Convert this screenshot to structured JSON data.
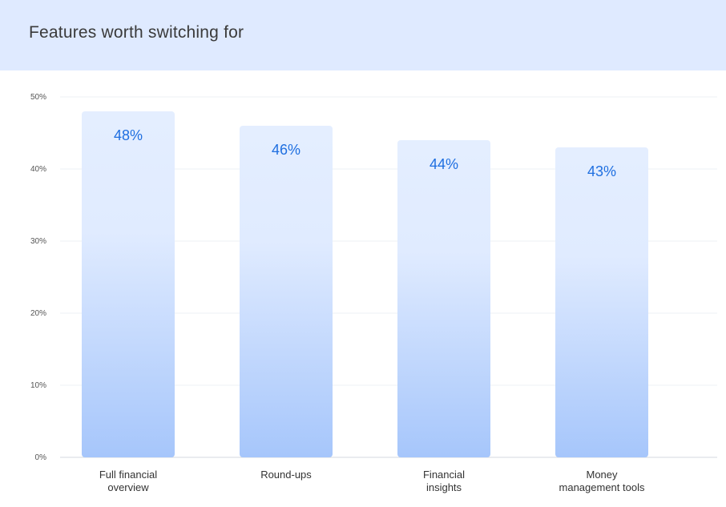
{
  "chart_data": {
    "type": "bar",
    "title": "Features worth switching for",
    "categories": [
      [
        "Full financial",
        "overview"
      ],
      [
        "Round-ups"
      ],
      [
        "Financial",
        "insights"
      ],
      [
        "Money",
        "management tools"
      ]
    ],
    "values": [
      48,
      46,
      44,
      43
    ],
    "value_labels": [
      "48%",
      "46%",
      "44%",
      "43%"
    ],
    "ylim": [
      0,
      50
    ],
    "yticks": [
      0,
      10,
      20,
      30,
      40,
      50
    ],
    "ytick_labels": [
      "0%",
      "10%",
      "20%",
      "30%",
      "40%",
      "50%"
    ],
    "xlabel": "",
    "ylabel": "",
    "grid": true,
    "colors": {
      "bar_top": "#e4eeff",
      "bar_bottom": "#a6c6fb",
      "value_text": "#1f6fe0",
      "header_bg": "#dfeaff"
    }
  }
}
